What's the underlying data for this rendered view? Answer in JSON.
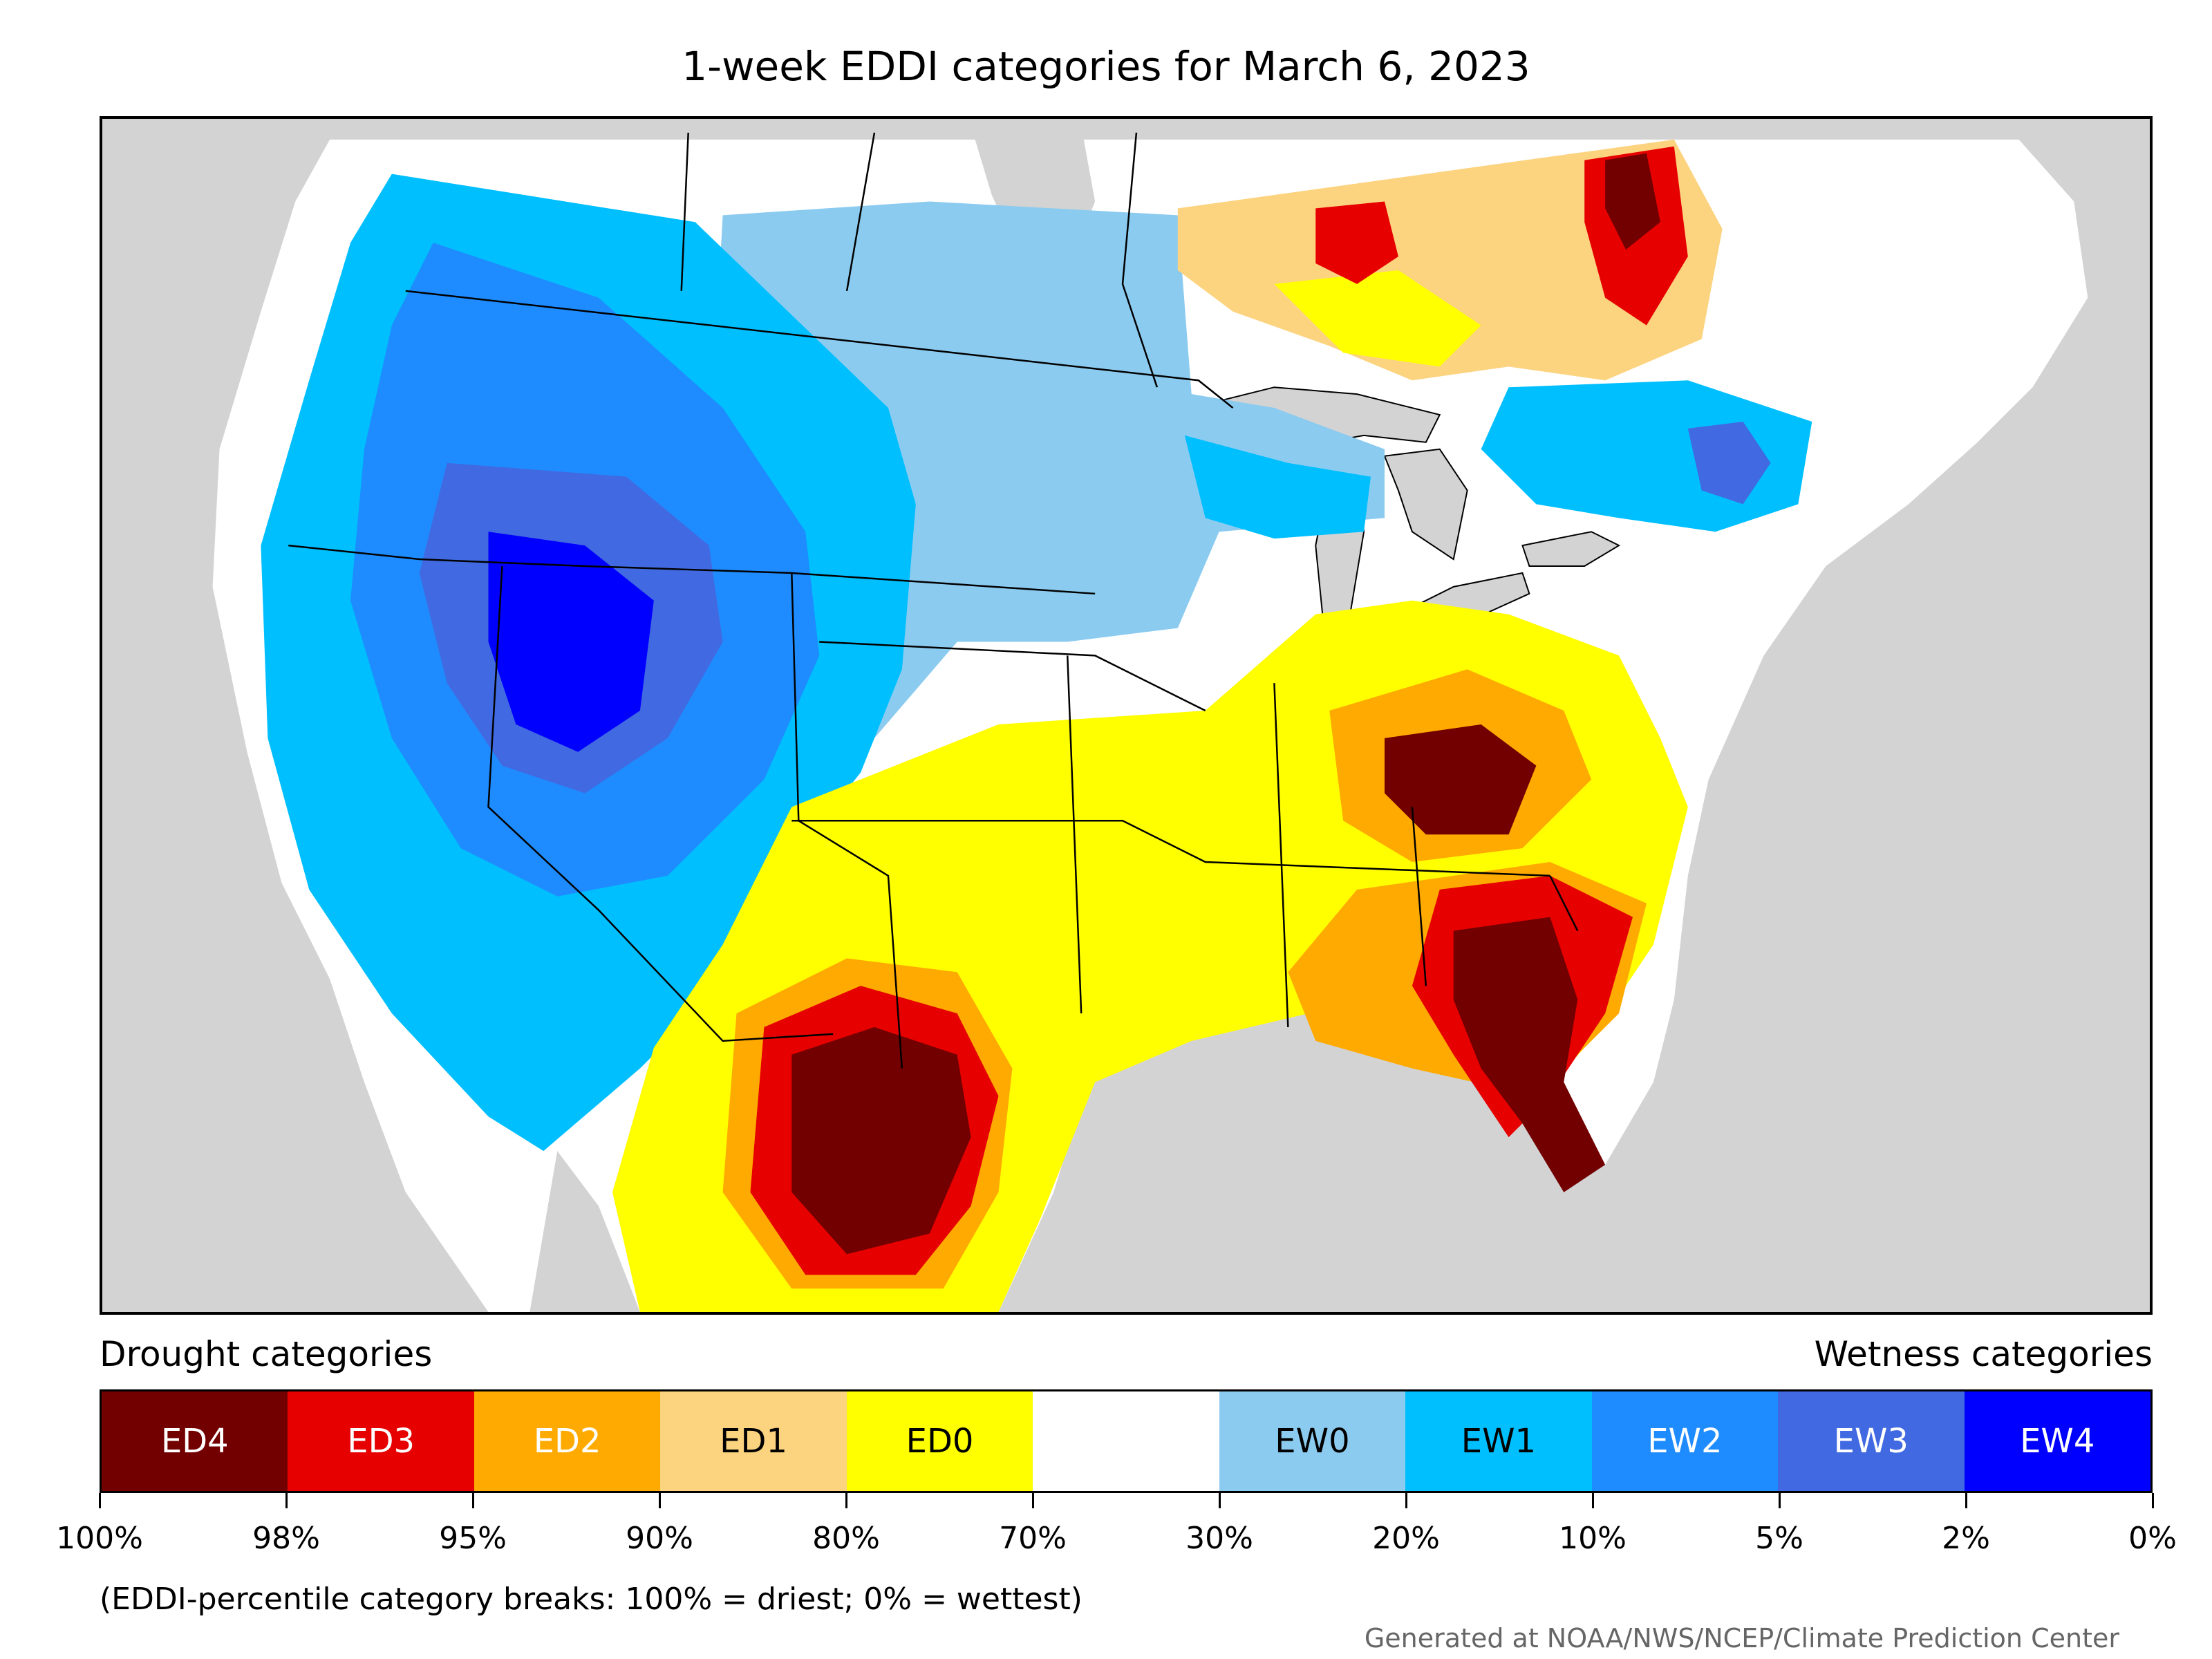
{
  "title": "1-week EDDI categories for March 6, 2023",
  "legend": {
    "left_label": "Drought categories",
    "right_label": "Wetness categories",
    "segments": [
      {
        "label": "ED4",
        "color": "#730000",
        "text_color": "#ffffff"
      },
      {
        "label": "ED3",
        "color": "#e60000",
        "text_color": "#ffffff"
      },
      {
        "label": "ED2",
        "color": "#ffaa00",
        "text_color": "#ffffff"
      },
      {
        "label": "ED1",
        "color": "#fcd37f",
        "text_color": "#000000"
      },
      {
        "label": "ED0",
        "color": "#ffff00",
        "text_color": "#000000"
      },
      {
        "label": "",
        "color": "#ffffff",
        "text_color": "#000000"
      },
      {
        "label": "EW0",
        "color": "#8ccbf0",
        "text_color": "#000000"
      },
      {
        "label": "EW1",
        "color": "#00bfff",
        "text_color": "#000000"
      },
      {
        "label": "EW2",
        "color": "#1e8cff",
        "text_color": "#ffffff"
      },
      {
        "label": "EW3",
        "color": "#4169e1",
        "text_color": "#ffffff"
      },
      {
        "label": "EW4",
        "color": "#0000ff",
        "text_color": "#ffffff"
      }
    ],
    "ticks": [
      "100%",
      "98%",
      "95%",
      "90%",
      "80%",
      "70%",
      "30%",
      "20%",
      "10%",
      "5%",
      "2%",
      "0%"
    ]
  },
  "note": "(EDDI-percentile category breaks: 100% = driest; 0% = wettest)",
  "credit": "Generated at NOAA/NWS/NCEP/Climate Prediction Center",
  "colors": {
    "ocean": "#d3d3d3",
    "land": "#ffffff",
    "lakes": "#d3d3d3"
  }
}
